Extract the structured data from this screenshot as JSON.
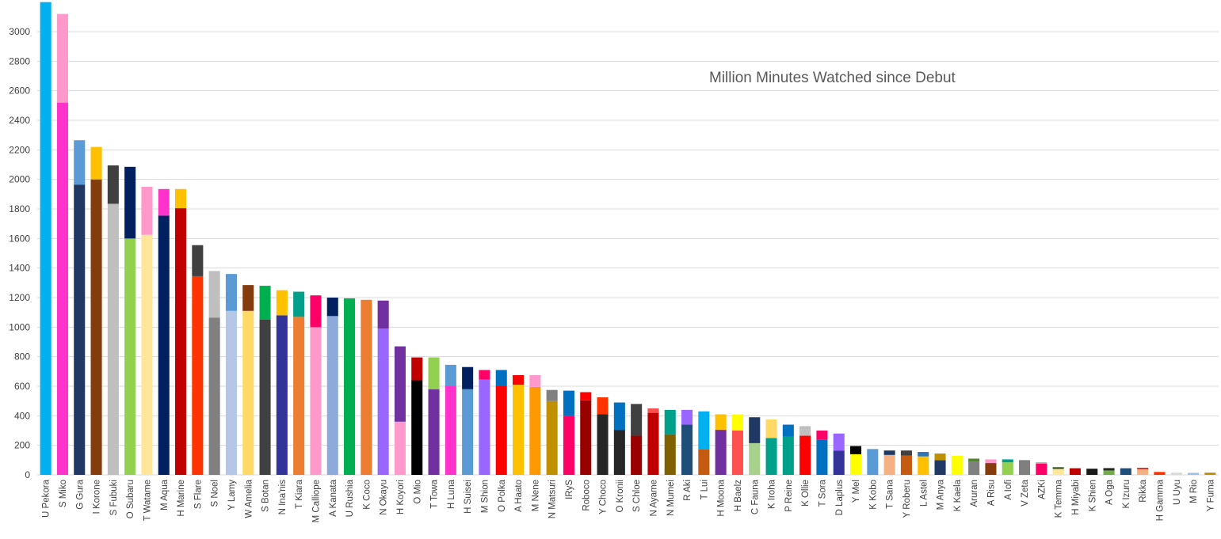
{
  "chart_data": {
    "type": "bar",
    "stacked": true,
    "title": "Million Minutes Watched since Debut",
    "xlabel": "",
    "ylabel": "",
    "ylim": [
      0,
      3000
    ],
    "yticks": [
      0,
      200,
      400,
      600,
      800,
      1000,
      1200,
      1400,
      1600,
      1800,
      2000,
      2200,
      2400,
      2600,
      2800,
      3000
    ],
    "grid": true,
    "legend": "none",
    "categories": [
      "U Pekora",
      "S Miko",
      "G Gura",
      "I Korone",
      "S Fubuki",
      "O Subaru",
      "T Watame",
      "M Aqua",
      "H Marine",
      "S Flare",
      "S Noel",
      "Y Lamy",
      "W Amelia",
      "S Botan",
      "N Ina'nis",
      "T Kiara",
      "M Calliope",
      "A Kanata",
      "U Rushia",
      "K Coco",
      "N Okayu",
      "H Koyori",
      "O Mio",
      "T Towa",
      "H Luna",
      "H Suisei",
      "M Shion",
      "O Polka",
      "A Haato",
      "M Nene",
      "N Matsuri",
      "IRyS",
      "Roboco",
      "Y Choco",
      "O Kronii",
      "S Chloe",
      "N Ayame",
      "N Mumei",
      "R Aki",
      "T Lui",
      "H Moona",
      "H Baelz",
      "C Fauna",
      "K Iroha",
      "P Reine",
      "K Ollie",
      "T Sora",
      "D Laplus",
      "Y Mel",
      "K Kobo",
      "T Sana",
      "Y Roberu",
      "L Astel",
      "M Anya",
      "K Kaela",
      "Aruran",
      "A Risu",
      "A Iofi",
      "V Zeta",
      "AZKi",
      "K Temma",
      "H Miyabi",
      "K Shien",
      "A Oga",
      "K Izuru",
      "Rikka",
      "H Gamma",
      "U Uyu",
      "M Rio",
      "Y Fuma"
    ],
    "bars": [
      [
        {
          "value": 3200,
          "color": "#00b0f0"
        }
      ],
      [
        {
          "value": 2520,
          "color": "#ff33cc"
        },
        {
          "value": 600,
          "color": "#ff99cc"
        }
      ],
      [
        {
          "value": 1965,
          "color": "#1f3864"
        },
        {
          "value": 300,
          "color": "#5b9bd5"
        }
      ],
      [
        {
          "value": 2000,
          "color": "#843c0c"
        },
        {
          "value": 220,
          "color": "#ffc000"
        }
      ],
      [
        {
          "value": 1835,
          "color": "#bfbfbf"
        },
        {
          "value": 260,
          "color": "#404040"
        }
      ],
      [
        {
          "value": 1600,
          "color": "#92d050"
        },
        {
          "value": 485,
          "color": "#002060"
        }
      ],
      [
        {
          "value": 1625,
          "color": "#ffe699"
        },
        {
          "value": 325,
          "color": "#ff99cc"
        }
      ],
      [
        {
          "value": 1755,
          "color": "#002060"
        },
        {
          "value": 180,
          "color": "#ff33cc"
        }
      ],
      [
        {
          "value": 1805,
          "color": "#c00000"
        },
        {
          "value": 130,
          "color": "#ffc000"
        }
      ],
      [
        {
          "value": 1345,
          "color": "#ff3300"
        },
        {
          "value": 210,
          "color": "#404040"
        }
      ],
      [
        {
          "value": 1065,
          "color": "#808080"
        },
        {
          "value": 315,
          "color": "#bfbfbf"
        }
      ],
      [
        {
          "value": 1110,
          "color": "#b4c7e7"
        },
        {
          "value": 250,
          "color": "#5b9bd5"
        }
      ],
      [
        {
          "value": 1110,
          "color": "#ffd966"
        },
        {
          "value": 175,
          "color": "#843c0c"
        }
      ],
      [
        {
          "value": 1050,
          "color": "#404040"
        },
        {
          "value": 230,
          "color": "#00b050"
        }
      ],
      [
        {
          "value": 1080,
          "color": "#333399"
        },
        {
          "value": 170,
          "color": "#ffc000"
        }
      ],
      [
        {
          "value": 1070,
          "color": "#ed7d31"
        },
        {
          "value": 170,
          "color": "#00a08a"
        }
      ],
      [
        {
          "value": 1000,
          "color": "#ff99cc"
        },
        {
          "value": 215,
          "color": "#ff0066"
        }
      ],
      [
        {
          "value": 1075,
          "color": "#8eaadb"
        },
        {
          "value": 125,
          "color": "#002060"
        }
      ],
      [
        {
          "value": 1195,
          "color": "#00b050"
        }
      ],
      [
        {
          "value": 1185,
          "color": "#ed7d31"
        }
      ],
      [
        {
          "value": 990,
          "color": "#9966ff"
        },
        {
          "value": 190,
          "color": "#7030a0"
        }
      ],
      [
        {
          "value": 360,
          "color": "#ff99cc"
        },
        {
          "value": 510,
          "color": "#7030a0"
        }
      ],
      [
        {
          "value": 640,
          "color": "#000000"
        },
        {
          "value": 155,
          "color": "#c00000"
        }
      ],
      [
        {
          "value": 580,
          "color": "#7030a0"
        },
        {
          "value": 215,
          "color": "#92d050"
        }
      ],
      [
        {
          "value": 605,
          "color": "#ff33cc"
        },
        {
          "value": 140,
          "color": "#5b9bd5"
        }
      ],
      [
        {
          "value": 580,
          "color": "#5b9bd5"
        },
        {
          "value": 150,
          "color": "#002060"
        }
      ],
      [
        {
          "value": 645,
          "color": "#9966ff"
        },
        {
          "value": 65,
          "color": "#ff0066"
        }
      ],
      [
        {
          "value": 605,
          "color": "#ff0000"
        },
        {
          "value": 105,
          "color": "#0070c0"
        }
      ],
      [
        {
          "value": 610,
          "color": "#ffc000"
        },
        {
          "value": 65,
          "color": "#ff0000"
        }
      ],
      [
        {
          "value": 595,
          "color": "#ff9900"
        },
        {
          "value": 80,
          "color": "#ff99cc"
        }
      ],
      [
        {
          "value": 500,
          "color": "#bf9000"
        },
        {
          "value": 75,
          "color": "#808080"
        }
      ],
      [
        {
          "value": 400,
          "color": "#ff0066"
        },
        {
          "value": 170,
          "color": "#0070c0"
        }
      ],
      [
        {
          "value": 505,
          "color": "#990000"
        },
        {
          "value": 55,
          "color": "#ff0000"
        }
      ],
      [
        {
          "value": 410,
          "color": "#262626"
        },
        {
          "value": 115,
          "color": "#ff3300"
        }
      ],
      [
        {
          "value": 305,
          "color": "#262626"
        },
        {
          "value": 185,
          "color": "#0070c0"
        }
      ],
      [
        {
          "value": 265,
          "color": "#990000"
        },
        {
          "value": 215,
          "color": "#404040"
        }
      ],
      [
        {
          "value": 420,
          "color": "#c00000"
        },
        {
          "value": 30,
          "color": "#ff5050"
        }
      ],
      [
        {
          "value": 275,
          "color": "#806000"
        },
        {
          "value": 165,
          "color": "#00a08a"
        }
      ],
      [
        {
          "value": 340,
          "color": "#1f4e79"
        },
        {
          "value": 100,
          "color": "#9966ff"
        }
      ],
      [
        {
          "value": 175,
          "color": "#c55a11"
        },
        {
          "value": 255,
          "color": "#00b0f0"
        }
      ],
      [
        {
          "value": 305,
          "color": "#7030a0"
        },
        {
          "value": 105,
          "color": "#ffc000"
        }
      ],
      [
        {
          "value": 300,
          "color": "#ff5050"
        },
        {
          "value": 110,
          "color": "#ffff00"
        }
      ],
      [
        {
          "value": 215,
          "color": "#a9d18e"
        },
        {
          "value": 175,
          "color": "#1f3864"
        }
      ],
      [
        {
          "value": 250,
          "color": "#00a08a"
        },
        {
          "value": 125,
          "color": "#ffd966"
        }
      ],
      [
        {
          "value": 260,
          "color": "#00a08a"
        },
        {
          "value": 80,
          "color": "#0070c0"
        }
      ],
      [
        {
          "value": 265,
          "color": "#ff0000"
        },
        {
          "value": 65,
          "color": "#bfbfbf"
        }
      ],
      [
        {
          "value": 240,
          "color": "#0070c0"
        },
        {
          "value": 60,
          "color": "#ff0066"
        }
      ],
      [
        {
          "value": 165,
          "color": "#333399"
        },
        {
          "value": 115,
          "color": "#9966ff"
        }
      ],
      [
        {
          "value": 140,
          "color": "#ffff00"
        },
        {
          "value": 55,
          "color": "#000000"
        }
      ],
      [
        {
          "value": 175,
          "color": "#5b9bd5"
        }
      ],
      [
        {
          "value": 135,
          "color": "#f4b183"
        },
        {
          "value": 30,
          "color": "#1f3864"
        }
      ],
      [
        {
          "value": 130,
          "color": "#c55a11"
        },
        {
          "value": 35,
          "color": "#404040"
        }
      ],
      [
        {
          "value": 125,
          "color": "#ffc000"
        },
        {
          "value": 30,
          "color": "#2e75b6"
        }
      ],
      [
        {
          "value": 100,
          "color": "#1f3864"
        },
        {
          "value": 45,
          "color": "#bf9000"
        }
      ],
      [
        {
          "value": 130,
          "color": "#ffff00"
        }
      ],
      [
        {
          "value": 90,
          "color": "#808080"
        },
        {
          "value": 20,
          "color": "#548235"
        }
      ],
      [
        {
          "value": 80,
          "color": "#843c0c"
        },
        {
          "value": 25,
          "color": "#ff99cc"
        }
      ],
      [
        {
          "value": 85,
          "color": "#92d050"
        },
        {
          "value": 20,
          "color": "#00a08a"
        }
      ],
      [
        {
          "value": 100,
          "color": "#7f7f7f"
        }
      ],
      [
        {
          "value": 75,
          "color": "#ff0066"
        },
        {
          "value": 10,
          "color": "#a6a6a6"
        }
      ],
      [
        {
          "value": 40,
          "color": "#ffe699"
        },
        {
          "value": 12,
          "color": "#375623"
        }
      ],
      [
        {
          "value": 45,
          "color": "#c00000"
        }
      ],
      [
        {
          "value": 42,
          "color": "#1a1a1a"
        }
      ],
      [
        {
          "value": 30,
          "color": "#70ad47"
        },
        {
          "value": 16,
          "color": "#262626"
        }
      ],
      [
        {
          "value": 45,
          "color": "#1f4e79"
        }
      ],
      [
        {
          "value": 40,
          "color": "#f4b183"
        },
        {
          "value": 8,
          "color": "#ff0000"
        }
      ],
      [
        {
          "value": 20,
          "color": "#ff3300"
        }
      ],
      [
        {
          "value": 15,
          "color": "#d9d9d9"
        }
      ],
      [
        {
          "value": 14,
          "color": "#9dc3e6"
        }
      ],
      [
        {
          "value": 15,
          "color": "#bf9000"
        }
      ]
    ]
  }
}
